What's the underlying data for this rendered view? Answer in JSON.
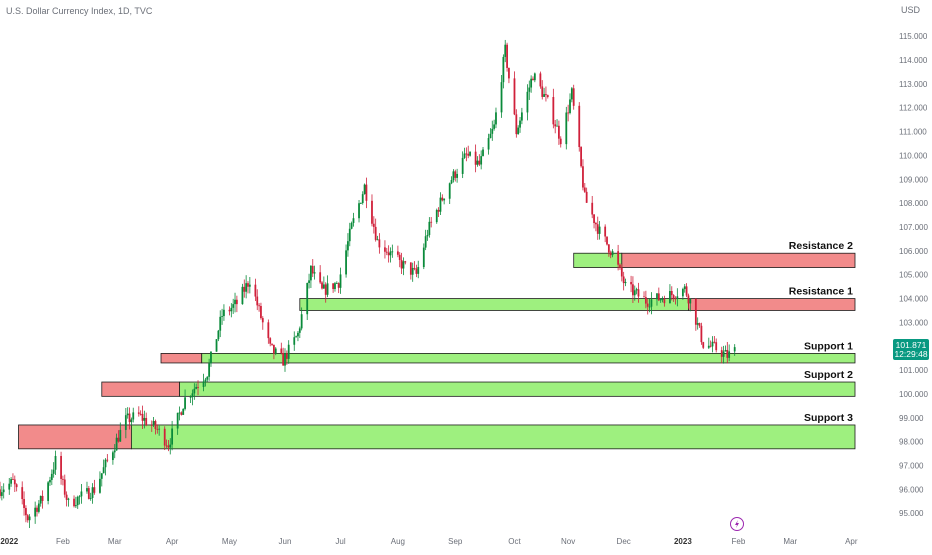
{
  "header": {
    "symbol_title": "U.S. Dollar Currency Index, 1D, TVC"
  },
  "price_scale": {
    "currency": "USD",
    "ticks": [
      "115.000",
      "114.000",
      "113.000",
      "112.000",
      "111.000",
      "110.000",
      "109.000",
      "108.000",
      "107.000",
      "106.000",
      "105.000",
      "104.000",
      "103.000",
      "102.000",
      "101.000",
      "100.000",
      "99.000",
      "98.000",
      "97.000",
      "96.000",
      "95.000"
    ],
    "last_price_label": "101.871",
    "countdown_label": "12:29:48",
    "last_price_color": "#089981"
  },
  "time_axis": {
    "labels": [
      "2022",
      "Feb",
      "Mar",
      "Apr",
      "May",
      "Jun",
      "Jul",
      "Aug",
      "Sep",
      "Oct",
      "Nov",
      "Dec",
      "2023",
      "Feb",
      "Mar",
      "Apr"
    ],
    "bold_labels": [
      "2022",
      "2023"
    ]
  },
  "zones": [
    {
      "label": "Resistance 2",
      "kind": "resistance",
      "range": [
        105.3,
        105.9
      ],
      "green_from": "Nov",
      "red_from": "Dec",
      "to": "Mar-end"
    },
    {
      "label": "Resistance 1",
      "kind": "resistance",
      "range": [
        103.5,
        104.0
      ],
      "green_from": "Jun",
      "red_from": "2023",
      "to": "Mar-end"
    },
    {
      "label": "Support 1",
      "kind": "support",
      "range": [
        101.3,
        101.7
      ],
      "red_from": "Mar-end",
      "green_from": "Apr-end",
      "to": "Mar-end"
    },
    {
      "label": "Support 2",
      "kind": "support",
      "range": [
        99.9,
        100.5
      ],
      "red_from": "Feb-end",
      "green_from": "Apr",
      "to": "Mar-end"
    },
    {
      "label": "Support 3",
      "kind": "support",
      "range": [
        97.7,
        98.7
      ],
      "red_from": "Jan",
      "green_from": "Mar",
      "to": "Mar-end"
    }
  ],
  "colors": {
    "up": "#0a8a3a",
    "down": "#d0203a",
    "resistance_fill": "#f28b8b",
    "support_fill": "#9ef07f",
    "zone_border": "#1c1c1c"
  },
  "icons": {
    "event_marker": "lightning-icon"
  },
  "chart_data": {
    "type": "candlestick",
    "title": "U.S. Dollar Currency Index, 1D, TVC",
    "xlabel": "",
    "ylabel": "",
    "ylim": [
      94.8,
      115.3
    ],
    "x_range": [
      "2021-12-29",
      "2023-04-05"
    ],
    "grid": false,
    "price_path": [
      [
        "2021-12-29",
        96.0
      ],
      [
        "2022-01-05",
        96.3
      ],
      [
        "2022-01-13",
        94.8
      ],
      [
        "2022-01-21",
        95.6
      ],
      [
        "2022-01-28",
        97.2
      ],
      [
        "2022-02-04",
        95.4
      ],
      [
        "2022-02-18",
        96.0
      ],
      [
        "2022-03-07",
        98.9
      ],
      [
        "2022-03-14",
        99.1
      ],
      [
        "2022-03-24",
        98.5
      ],
      [
        "2022-03-30",
        97.9
      ],
      [
        "2022-04-08",
        99.8
      ],
      [
        "2022-04-20",
        100.9
      ],
      [
        "2022-04-28",
        103.3
      ],
      [
        "2022-05-06",
        103.8
      ],
      [
        "2022-05-13",
        104.8
      ],
      [
        "2022-05-24",
        101.9
      ],
      [
        "2022-05-31",
        101.4
      ],
      [
        "2022-06-08",
        102.5
      ],
      [
        "2022-06-15",
        105.2
      ],
      [
        "2022-06-21",
        104.3
      ],
      [
        "2022-06-30",
        104.7
      ],
      [
        "2022-07-07",
        107.0
      ],
      [
        "2022-07-14",
        108.7
      ],
      [
        "2022-07-21",
        106.4
      ],
      [
        "2022-08-02",
        105.5
      ],
      [
        "2022-08-11",
        105.0
      ],
      [
        "2022-08-17",
        106.8
      ],
      [
        "2022-08-29",
        108.9
      ],
      [
        "2022-09-07",
        110.0
      ],
      [
        "2022-09-14",
        109.6
      ],
      [
        "2022-09-22",
        111.2
      ],
      [
        "2022-09-28",
        114.4
      ],
      [
        "2022-10-04",
        111.0
      ],
      [
        "2022-10-13",
        113.4
      ],
      [
        "2022-10-21",
        112.2
      ],
      [
        "2022-10-28",
        110.7
      ],
      [
        "2022-11-03",
        112.6
      ],
      [
        "2022-11-10",
        108.2
      ],
      [
        "2022-11-18",
        106.8
      ],
      [
        "2022-11-25",
        105.9
      ],
      [
        "2022-12-02",
        104.5
      ],
      [
        "2022-12-13",
        103.9
      ],
      [
        "2022-12-20",
        104.0
      ],
      [
        "2022-12-28",
        104.2
      ],
      [
        "2023-01-03",
        104.4
      ],
      [
        "2023-01-06",
        103.9
      ],
      [
        "2023-01-13",
        102.1
      ],
      [
        "2023-01-20",
        101.9
      ],
      [
        "2023-01-26",
        101.6
      ],
      [
        "2023-01-31",
        101.87
      ]
    ]
  }
}
